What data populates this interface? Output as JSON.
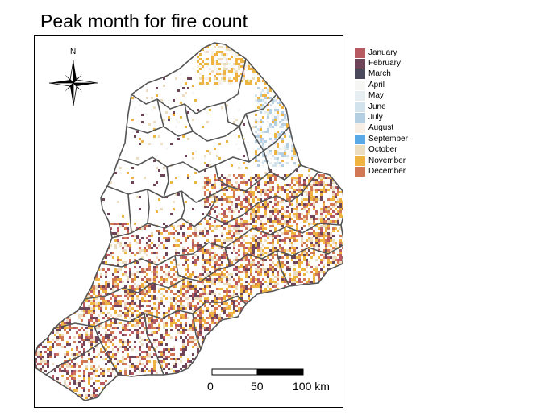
{
  "title": "Peak month for fire count",
  "legend": [
    {
      "label": "January",
      "color": "#b85a62"
    },
    {
      "label": "February",
      "color": "#6e4459"
    },
    {
      "label": "March",
      "color": "#4a4a5c"
    },
    {
      "label": "April",
      "color": "#f6f7f4"
    },
    {
      "label": "May",
      "color": "#e6eef2"
    },
    {
      "label": "June",
      "color": "#d3e3ee"
    },
    {
      "label": "July",
      "color": "#b5cfe2"
    },
    {
      "label": "August",
      "color": "#f7eee6"
    },
    {
      "label": "September",
      "color": "#58a9e6"
    },
    {
      "label": "October",
      "color": "#ecdcc0"
    },
    {
      "label": "November",
      "color": "#efb342"
    },
    {
      "label": "December",
      "color": "#d37855"
    }
  ],
  "north_arrow": {
    "label": "N",
    "icon": "compass-rose-icon"
  },
  "scale_bar": {
    "ticks": [
      "0",
      "50",
      "100 km"
    ]
  }
}
